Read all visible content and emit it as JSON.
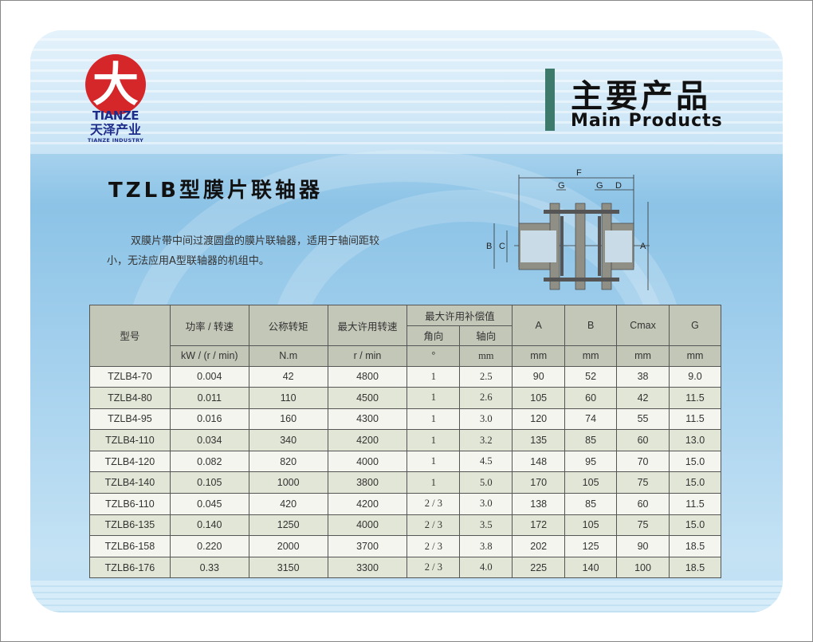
{
  "logo": {
    "mark": "大",
    "brand_en": "TIANZE",
    "brand_cn": "天泽产业",
    "brand_sub": "TIANZE INDUSTRY"
  },
  "header": {
    "title_cn": "主要产品",
    "title_en": "Main Products"
  },
  "product": {
    "title": "TZLB型膜片联轴器",
    "description": "双膜片带中间过渡圆盘的膜片联轴器，适用于轴间距较小，无法应用A型联轴器的机组中。"
  },
  "diagram": {
    "labels": [
      "F",
      "G",
      "G",
      "D",
      "B",
      "C",
      "A"
    ]
  },
  "table": {
    "headers": {
      "model": "型号",
      "power": "功率 / 转速",
      "power_unit": "kW / (r / min)",
      "torque": "公称转矩",
      "torque_unit": "N.m",
      "speed": "最大许用转速",
      "speed_unit": "r / min",
      "comp": "最大许用补偿值",
      "angle": "角向",
      "angle_unit": "°",
      "axial": "轴向",
      "axial_unit": "mm",
      "A": "A",
      "A_unit": "mm",
      "B": "B",
      "B_unit": "mm",
      "Cmax": "Cmax",
      "Cmax_unit": "mm",
      "G": "G",
      "G_unit": "mm"
    },
    "rows": [
      [
        "TZLB4-70",
        "0.004",
        "42",
        "4800",
        "1",
        "2.5",
        "90",
        "52",
        "38",
        "9.0"
      ],
      [
        "TZLB4-80",
        "0.011",
        "110",
        "4500",
        "1",
        "2.6",
        "105",
        "60",
        "42",
        "11.5"
      ],
      [
        "TZLB4-95",
        "0.016",
        "160",
        "4300",
        "1",
        "3.0",
        "120",
        "74",
        "55",
        "11.5"
      ],
      [
        "TZLB4-110",
        "0.034",
        "340",
        "4200",
        "1",
        "3.2",
        "135",
        "85",
        "60",
        "13.0"
      ],
      [
        "TZLB4-120",
        "0.082",
        "820",
        "4000",
        "1",
        "4.5",
        "148",
        "95",
        "70",
        "15.0"
      ],
      [
        "TZLB4-140",
        "0.105",
        "1000",
        "3800",
        "1",
        "5.0",
        "170",
        "105",
        "75",
        "15.0"
      ],
      [
        "TZLB6-110",
        "0.045",
        "420",
        "4200",
        "2 / 3",
        "3.0",
        "138",
        "85",
        "60",
        "11.5"
      ],
      [
        "TZLB6-135",
        "0.140",
        "1250",
        "4000",
        "2 / 3",
        "3.5",
        "172",
        "105",
        "75",
        "15.0"
      ],
      [
        "TZLB6-158",
        "0.220",
        "2000",
        "3700",
        "2 / 3",
        "3.8",
        "202",
        "125",
        "90",
        "18.5"
      ],
      [
        "TZLB6-176",
        "0.33",
        "3150",
        "3300",
        "2 / 3",
        "4.0",
        "225",
        "140",
        "100",
        "18.5"
      ]
    ]
  }
}
